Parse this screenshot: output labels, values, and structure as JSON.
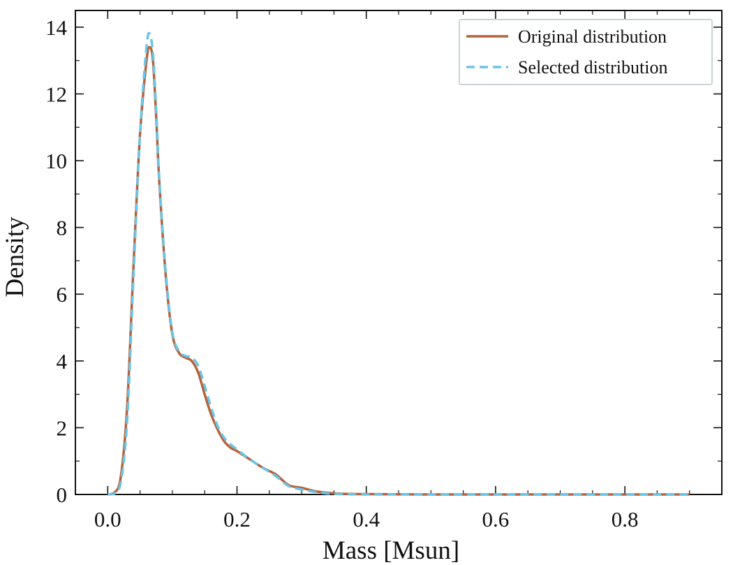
{
  "chart_data": {
    "type": "line",
    "xlabel": "Mass [Msun]",
    "ylabel": "Density",
    "xlim": [
      -0.05,
      0.95
    ],
    "ylim": [
      0,
      14.5
    ],
    "xticks": [
      0.0,
      0.2,
      0.4,
      0.6,
      0.8
    ],
    "xtick_labels": [
      "0.0",
      "0.2",
      "0.4",
      "0.6",
      "0.8"
    ],
    "yticks": [
      0,
      2,
      4,
      6,
      8,
      10,
      12,
      14
    ],
    "ytick_labels": [
      "0",
      "2",
      "4",
      "6",
      "8",
      "10",
      "12",
      "14"
    ],
    "grid": false,
    "legend_position": "top-right",
    "series": [
      {
        "name": "Original distribution",
        "color": "#b5623b",
        "dash": "solid",
        "x": [
          0.0,
          0.01,
          0.02,
          0.03,
          0.04,
          0.05,
          0.06,
          0.065,
          0.07,
          0.075,
          0.08,
          0.09,
          0.1,
          0.11,
          0.12,
          0.13,
          0.14,
          0.15,
          0.16,
          0.17,
          0.18,
          0.19,
          0.2,
          0.22,
          0.24,
          0.26,
          0.28,
          0.3,
          0.32,
          0.34,
          0.36,
          0.4,
          0.5,
          0.6,
          0.7,
          0.8,
          0.9
        ],
        "y": [
          0.0,
          0.05,
          0.5,
          2.6,
          6.9,
          10.8,
          13.0,
          13.4,
          13.0,
          11.3,
          9.3,
          6.5,
          4.8,
          4.25,
          4.1,
          4.0,
          3.65,
          3.0,
          2.4,
          1.95,
          1.6,
          1.4,
          1.3,
          1.05,
          0.8,
          0.6,
          0.28,
          0.2,
          0.1,
          0.05,
          0.02,
          0.01,
          0.0,
          0.0,
          0.0,
          0.0,
          0.0
        ]
      },
      {
        "name": "Selected distribution",
        "color": "#6bc4e6",
        "dash": "dashed",
        "x": [
          0.0,
          0.01,
          0.02,
          0.03,
          0.04,
          0.05,
          0.06,
          0.065,
          0.07,
          0.075,
          0.08,
          0.09,
          0.1,
          0.11,
          0.12,
          0.13,
          0.14,
          0.15,
          0.16,
          0.17,
          0.18,
          0.19,
          0.2,
          0.22,
          0.24,
          0.26,
          0.28,
          0.3,
          0.32,
          0.34,
          0.36,
          0.4,
          0.5,
          0.6,
          0.7,
          0.8,
          0.9
        ],
        "y": [
          0.0,
          0.02,
          0.35,
          2.2,
          6.6,
          10.8,
          13.4,
          13.8,
          13.2,
          11.5,
          9.4,
          6.6,
          4.85,
          4.3,
          4.15,
          4.1,
          3.85,
          3.25,
          2.6,
          2.05,
          1.7,
          1.5,
          1.35,
          1.05,
          0.8,
          0.55,
          0.25,
          0.15,
          0.08,
          0.03,
          0.01,
          0.0,
          0.0,
          0.0,
          0.0,
          0.0,
          0.0
        ]
      }
    ]
  }
}
